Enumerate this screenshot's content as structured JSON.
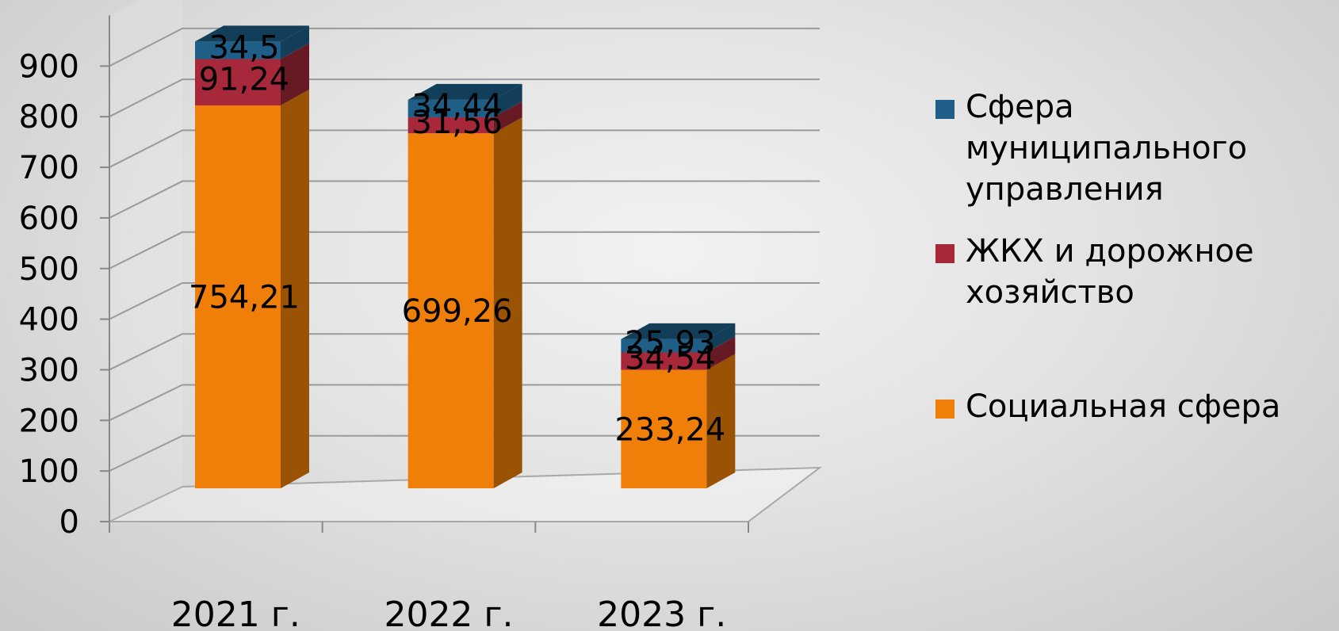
{
  "chart_data": {
    "type": "bar",
    "stacked": true,
    "three_d": true,
    "categories": [
      "2021 г.",
      "2022 г.",
      "2023 г."
    ],
    "y_ticks": [
      "0",
      "100",
      "200",
      "300",
      "400",
      "500",
      "600",
      "700",
      "800",
      "900"
    ],
    "ylim": [
      0,
      1000
    ],
    "grid": true,
    "legend_position": "right",
    "series": [
      {
        "name": "Социальная сфера",
        "color": "#f07f0a",
        "side_color": "#9a5205",
        "values": [
          754.21,
          699.26,
          233.24
        ],
        "labels": [
          "754,21",
          "699,26",
          "233,24"
        ]
      },
      {
        "name": "ЖКХ и дорожное хозяйство",
        "color": "#a6283a",
        "side_color": "#681a24",
        "values": [
          91.24,
          31.56,
          34.54
        ],
        "labels": [
          "91,24",
          "31,56",
          "34,54"
        ]
      },
      {
        "name": "Сфера муниципального управления",
        "color": "#1f5f87",
        "side_color": "#123e59",
        "values": [
          34.5,
          34.44,
          25.93
        ],
        "labels": [
          "34,5",
          "34,44",
          "25,93"
        ]
      }
    ],
    "legend": [
      {
        "color": "#1f5f87",
        "lines": [
          "Сфера",
          "муниципального",
          "управления"
        ]
      },
      {
        "color": "#a6283a",
        "lines": [
          "ЖКХ и дорожное",
          "хозяйство"
        ]
      },
      {
        "color": "#f07f0a",
        "lines": [
          "Социальная сфера"
        ]
      }
    ]
  }
}
